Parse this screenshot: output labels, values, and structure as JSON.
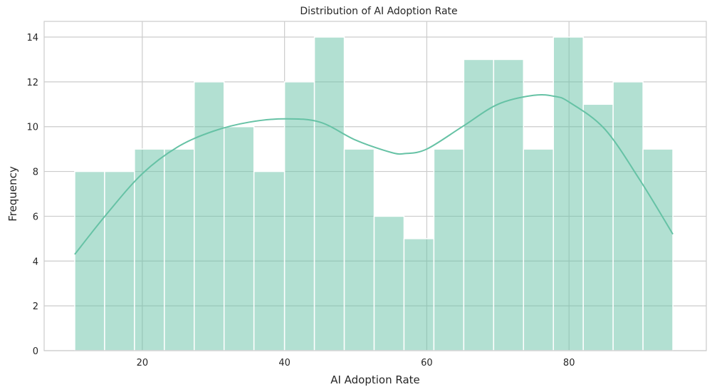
{
  "chart_data": {
    "type": "bar",
    "title": "Distribution of AI Adoption Rate",
    "xlabel": "AI Adoption Rate",
    "ylabel": "Frequency",
    "xlim": [
      6.2,
      99.3
    ],
    "ylim": [
      0,
      14.7
    ],
    "xticks": [
      20,
      40,
      60,
      80
    ],
    "yticks": [
      0,
      2,
      4,
      6,
      8,
      10,
      12,
      14
    ],
    "grid": true,
    "bins": [
      {
        "x0": 10.5,
        "x1": 14.7,
        "count": 8
      },
      {
        "x0": 14.7,
        "x1": 18.9,
        "count": 8
      },
      {
        "x0": 18.9,
        "x1": 23.1,
        "count": 9
      },
      {
        "x0": 23.1,
        "x1": 27.3,
        "count": 9
      },
      {
        "x0": 27.3,
        "x1": 31.5,
        "count": 12
      },
      {
        "x0": 31.5,
        "x1": 35.7,
        "count": 10
      },
      {
        "x0": 35.7,
        "x1": 40.0,
        "count": 8
      },
      {
        "x0": 40.0,
        "x1": 44.2,
        "count": 12
      },
      {
        "x0": 44.2,
        "x1": 48.4,
        "count": 14
      },
      {
        "x0": 48.4,
        "x1": 52.6,
        "count": 9
      },
      {
        "x0": 52.6,
        "x1": 56.8,
        "count": 6
      },
      {
        "x0": 56.8,
        "x1": 61.0,
        "count": 5
      },
      {
        "x0": 61.0,
        "x1": 65.2,
        "count": 9
      },
      {
        "x0": 65.2,
        "x1": 69.4,
        "count": 13
      },
      {
        "x0": 69.4,
        "x1": 73.6,
        "count": 13
      },
      {
        "x0": 73.6,
        "x1": 77.8,
        "count": 9
      },
      {
        "x0": 77.8,
        "x1": 82.0,
        "count": 14
      },
      {
        "x0": 82.0,
        "x1": 86.2,
        "count": 11
      },
      {
        "x0": 86.2,
        "x1": 90.4,
        "count": 12
      },
      {
        "x0": 90.4,
        "x1": 94.6,
        "count": 9
      }
    ],
    "kde": {
      "x": [
        10.5,
        15,
        20,
        25,
        30,
        35,
        40,
        45,
        50,
        55,
        57,
        60,
        65,
        70,
        75,
        78,
        80,
        85,
        90,
        94.6
      ],
      "y": [
        4.3,
        6.1,
        7.9,
        9.1,
        9.8,
        10.2,
        10.35,
        10.2,
        9.4,
        8.85,
        8.8,
        9.0,
        10.0,
        11.0,
        11.4,
        11.35,
        11.1,
        9.9,
        7.6,
        5.2
      ]
    },
    "colors": {
      "bar": "#66c2a5",
      "kde": "#66c2a5",
      "grid": "#cccccc",
      "text": "#262626"
    }
  }
}
